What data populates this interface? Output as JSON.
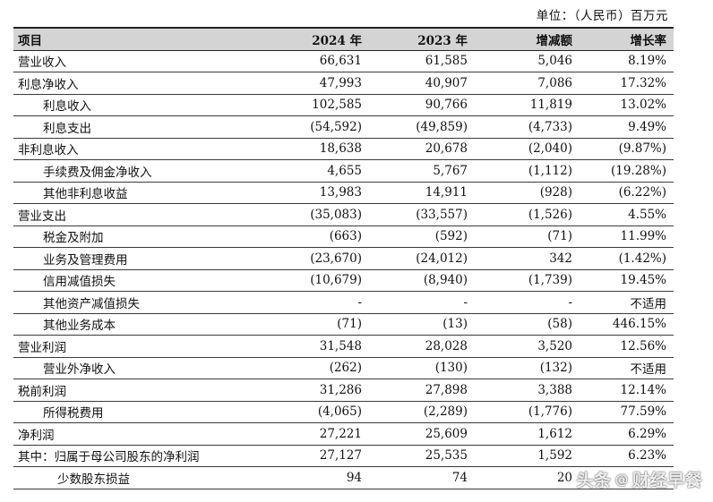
{
  "unit_label": "单位：（人民币）百万元",
  "columns": [
    "项目",
    "2024 年",
    "2023 年",
    "增减额",
    "增长率"
  ],
  "rows": [
    {
      "item": "营业收入",
      "indent": 0,
      "y2024": "66,631",
      "y2023": "61,585",
      "change": "5,046",
      "rate": "8.19%"
    },
    {
      "item": "利息净收入",
      "indent": 0,
      "y2024": "47,993",
      "y2023": "40,907",
      "change": "7,086",
      "rate": "17.32%"
    },
    {
      "item": "利息收入",
      "indent": 1,
      "y2024": "102,585",
      "y2023": "90,766",
      "change": "11,819",
      "rate": "13.02%"
    },
    {
      "item": "利息支出",
      "indent": 1,
      "y2024": "(54,592)",
      "y2023": "(49,859)",
      "change": "(4,733)",
      "rate": "9.49%"
    },
    {
      "item": "非利息收入",
      "indent": 0,
      "y2024": "18,638",
      "y2023": "20,678",
      "change": "(2,040)",
      "rate": "(9.87%)"
    },
    {
      "item": "手续费及佣金净收入",
      "indent": 1,
      "y2024": "4,655",
      "y2023": "5,767",
      "change": "(1,112)",
      "rate": "(19.28%)"
    },
    {
      "item": "其他非利息收益",
      "indent": 1,
      "y2024": "13,983",
      "y2023": "14,911",
      "change": "(928)",
      "rate": "(6.22%)"
    },
    {
      "item": "营业支出",
      "indent": 0,
      "y2024": "(35,083)",
      "y2023": "(33,557)",
      "change": "(1,526)",
      "rate": "4.55%"
    },
    {
      "item": "税金及附加",
      "indent": 1,
      "y2024": "(663)",
      "y2023": "(592)",
      "change": "(71)",
      "rate": "11.99%"
    },
    {
      "item": "业务及管理费用",
      "indent": 1,
      "y2024": "(23,670)",
      "y2023": "(24,012)",
      "change": "342",
      "rate": "(1.42%)"
    },
    {
      "item": "信用减值损失",
      "indent": 1,
      "y2024": "(10,679)",
      "y2023": "(8,940)",
      "change": "(1,739)",
      "rate": "19.45%"
    },
    {
      "item": "其他资产减值损失",
      "indent": 1,
      "y2024": "-",
      "y2023": "-",
      "change": "-",
      "rate": "不适用"
    },
    {
      "item": "其他业务成本",
      "indent": 1,
      "y2024": "(71)",
      "y2023": "(13)",
      "change": "(58)",
      "rate": "446.15%"
    },
    {
      "item": "营业利润",
      "indent": 0,
      "y2024": "31,548",
      "y2023": "28,028",
      "change": "3,520",
      "rate": "12.56%"
    },
    {
      "item": "营业外净收入",
      "indent": 1,
      "y2024": "(262)",
      "y2023": "(130)",
      "change": "(132)",
      "rate": "不适用"
    },
    {
      "item": "税前利润",
      "indent": 0,
      "y2024": "31,286",
      "y2023": "27,898",
      "change": "3,388",
      "rate": "12.14%"
    },
    {
      "item": "所得税费用",
      "indent": 1,
      "y2024": "(4,065)",
      "y2023": "(2,289)",
      "change": "(1,776)",
      "rate": "77.59%"
    },
    {
      "item": "净利润",
      "indent": 0,
      "y2024": "27,221",
      "y2023": "25,609",
      "change": "1,612",
      "rate": "6.29%"
    },
    {
      "item": "其中：归属于母公司股东的净利润",
      "indent": 0,
      "y2024": "27,127",
      "y2023": "25,535",
      "change": "1,592",
      "rate": "6.23%"
    },
    {
      "item": "少数股东损益",
      "indent": 2,
      "y2024": "94",
      "y2023": "74",
      "change": "20",
      "rate": ""
    }
  ],
  "watermark": {
    "brand": "头条",
    "separator": "@",
    "account": "财经早餐"
  }
}
